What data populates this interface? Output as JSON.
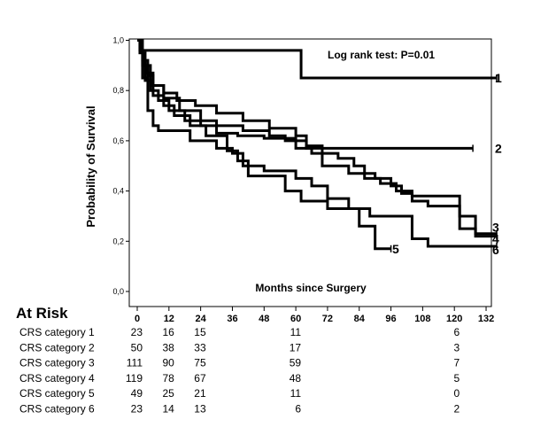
{
  "chart_data": {
    "type": "line",
    "title": "",
    "xlabel": "Months since Surgery",
    "ylabel": "Probability of Survival",
    "annotation": "Log rank test: P=0.01",
    "xlim": [
      0,
      136
    ],
    "ylim": [
      0,
      1.05
    ],
    "x_ticks": [
      0,
      12,
      24,
      36,
      48,
      60,
      72,
      84,
      96,
      108,
      120,
      132
    ],
    "y_ticks": [
      {
        "value": 0.0,
        "label": "0,0"
      },
      {
        "value": 0.2,
        "label": "0,2"
      },
      {
        "value": 0.4,
        "label": "0,4"
      },
      {
        "value": 0.6,
        "label": "0,6"
      },
      {
        "value": 0.8,
        "label": "0,8"
      },
      {
        "value": 1.0,
        "label": "1,0"
      }
    ],
    "grid": false,
    "series": [
      {
        "name": "1",
        "end_x": 136,
        "x": [
          0,
          1,
          2,
          60,
          62,
          136
        ],
        "y": [
          1,
          0.96,
          0.96,
          0.96,
          0.85,
          0.85
        ]
      },
      {
        "name": "2",
        "end_x": 127,
        "x": [
          0,
          1,
          2,
          3,
          5,
          8,
          12,
          18,
          24,
          30,
          38,
          48,
          56,
          60,
          64,
          70,
          127
        ],
        "y": [
          1,
          0.96,
          0.9,
          0.84,
          0.8,
          0.76,
          0.72,
          0.68,
          0.66,
          0.63,
          0.62,
          0.61,
          0.61,
          0.6,
          0.57,
          0.57,
          0.57
        ]
      },
      {
        "name": "3",
        "end_x": 136,
        "x": [
          0,
          2,
          5,
          10,
          15,
          22,
          30,
          40,
          50,
          60,
          64,
          70,
          76,
          82,
          86,
          90,
          96,
          100,
          104,
          110,
          118,
          122,
          128,
          136
        ],
        "y": [
          1,
          0.9,
          0.82,
          0.79,
          0.76,
          0.74,
          0.71,
          0.68,
          0.65,
          0.62,
          0.58,
          0.55,
          0.53,
          0.5,
          0.47,
          0.45,
          0.42,
          0.39,
          0.36,
          0.34,
          0.34,
          0.3,
          0.23,
          0.23
        ]
      },
      {
        "name": "4",
        "end_x": 136,
        "x": [
          0,
          1,
          3,
          6,
          10,
          16,
          24,
          30,
          40,
          50,
          56,
          60,
          66,
          70,
          80,
          86,
          92,
          98,
          104,
          120,
          122,
          128,
          136
        ],
        "y": [
          1,
          0.95,
          0.87,
          0.82,
          0.77,
          0.72,
          0.68,
          0.66,
          0.64,
          0.62,
          0.6,
          0.57,
          0.55,
          0.5,
          0.47,
          0.45,
          0.43,
          0.4,
          0.38,
          0.38,
          0.25,
          0.22,
          0.22
        ]
      },
      {
        "name": "5",
        "end_x": 96,
        "x": [
          0,
          1,
          2,
          4,
          6,
          8,
          12,
          20,
          30,
          36,
          40,
          48,
          60,
          66,
          72,
          80,
          84,
          90,
          96
        ],
        "y": [
          1,
          0.95,
          0.85,
          0.72,
          0.66,
          0.64,
          0.64,
          0.6,
          0.57,
          0.55,
          0.5,
          0.48,
          0.45,
          0.42,
          0.37,
          0.33,
          0.26,
          0.17,
          0.17
        ]
      },
      {
        "name": "6",
        "end_x": 136,
        "x": [
          0,
          1,
          2,
          4,
          6,
          10,
          14,
          20,
          26,
          34,
          38,
          42,
          56,
          62,
          72,
          82,
          88,
          96,
          104,
          110,
          120,
          136
        ],
        "y": [
          1,
          0.96,
          0.92,
          0.86,
          0.78,
          0.74,
          0.7,
          0.66,
          0.62,
          0.56,
          0.52,
          0.46,
          0.4,
          0.36,
          0.33,
          0.33,
          0.3,
          0.3,
          0.21,
          0.18,
          0.18,
          0.18
        ]
      }
    ],
    "at_risk": {
      "title": "At Risk",
      "months": [
        0,
        12,
        24,
        60,
        120
      ],
      "rows": [
        {
          "label": "CRS category 1",
          "values": [
            "23",
            "16",
            "15",
            "11",
            "6"
          ]
        },
        {
          "label": "CRS category 2",
          "values": [
            "50",
            "38",
            "33",
            "17",
            "3"
          ]
        },
        {
          "label": "CRS category 3",
          "values": [
            "111",
            "90",
            "75",
            "59",
            "7"
          ]
        },
        {
          "label": "CRS category 4",
          "values": [
            "119",
            "78",
            "67",
            "48",
            "5"
          ]
        },
        {
          "label": "CRS category 5",
          "values": [
            "49",
            "25",
            "21",
            "11",
            "0"
          ]
        },
        {
          "label": "CRS category 6",
          "values": [
            "23",
            "14",
            "13",
            "6",
            "2"
          ]
        }
      ]
    },
    "colors": {
      "line": "#000000",
      "background": "#ffffff"
    }
  }
}
